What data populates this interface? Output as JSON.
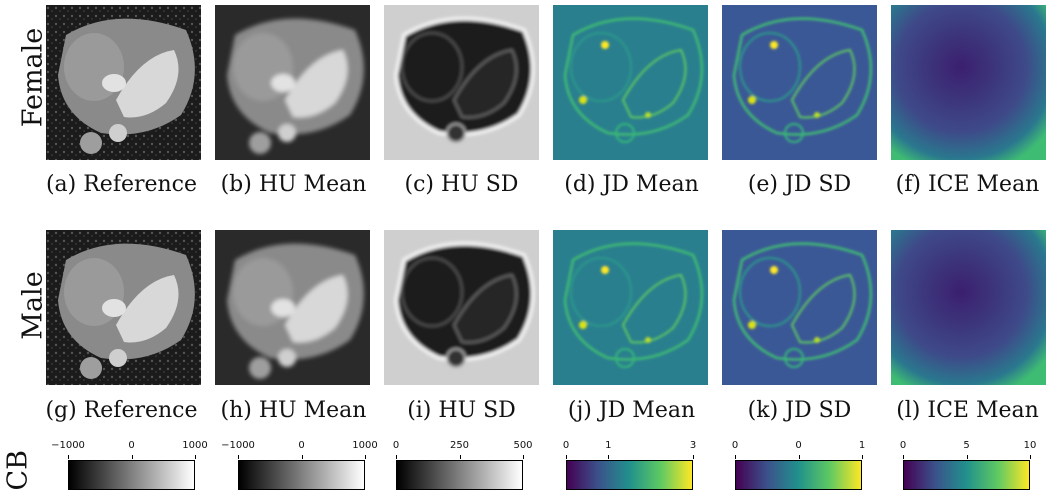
{
  "rows": [
    {
      "label": "Female",
      "captions": [
        "(a) Reference",
        "(b) HU Mean",
        "(c) HU SD",
        "(d) JD Mean",
        "(e) JD SD",
        "(f) ICE Mean"
      ]
    },
    {
      "label": "Male",
      "captions": [
        "(g) Reference",
        "(h) HU Mean",
        "(i) HU SD",
        "(j) JD Mean",
        "(k) JD SD",
        "(l) ICE Mean"
      ]
    }
  ],
  "cb_label": "CB",
  "colorbars": [
    {
      "ticks": [
        "−1000",
        "0",
        "1000"
      ],
      "tick_values": [
        -1000,
        0,
        1000
      ],
      "range": [
        -1000,
        1000
      ],
      "colormap": "gray"
    },
    {
      "ticks": [
        "−1000",
        "0",
        "1000"
      ],
      "tick_values": [
        -1000,
        0,
        1000
      ],
      "range": [
        -1000,
        1000
      ],
      "colormap": "gray"
    },
    {
      "ticks": [
        "0",
        "250",
        "500"
      ],
      "tick_values": [
        0,
        250,
        500
      ],
      "range": [
        0,
        500
      ],
      "colormap": "gray"
    },
    {
      "ticks": [
        "0",
        "1",
        "3"
      ],
      "tick_values": [
        0,
        1,
        3
      ],
      "range": [
        0,
        3
      ],
      "colormap": "viridis"
    },
    {
      "ticks": [
        "0",
        "0",
        "1"
      ],
      "tick_values": [
        0,
        0.5,
        1
      ],
      "range": [
        0,
        1
      ],
      "colormap": "viridis"
    },
    {
      "ticks": [
        "0",
        "5",
        "10"
      ],
      "tick_values": [
        0,
        5,
        10
      ],
      "range": [
        0,
        10
      ],
      "colormap": "viridis"
    }
  ],
  "colors": {
    "viridis_low": "#440154",
    "viridis_mid": "#21918c",
    "viridis_high": "#fde725"
  }
}
